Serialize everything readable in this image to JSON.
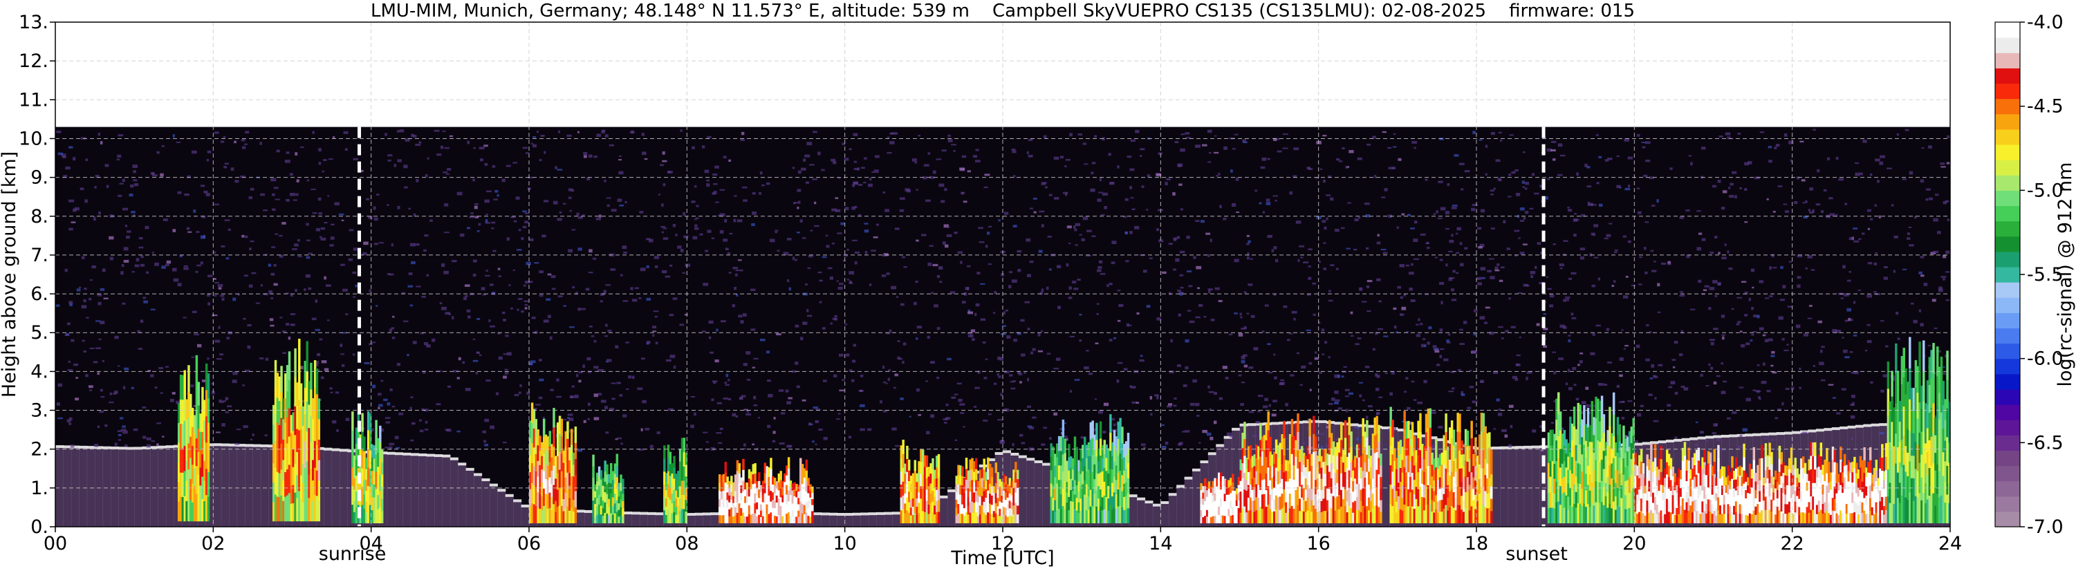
{
  "chart_data": {
    "type": "heatmap",
    "title": "LMU-MIM, Munich, Germany; 48.148° N 11.573° E, altitude: 539 m    Campbell SkyVUEPRO CS135 (CS135LMU): 02-08-2025    firmware: 015",
    "xlabel": "Time [UTC]",
    "ylabel": "Height above ground [km]",
    "xlim": [
      0,
      24
    ],
    "ylim": [
      0,
      13
    ],
    "x_ticks": [
      "00",
      "02",
      "04",
      "06",
      "08",
      "10",
      "12",
      "14",
      "16",
      "18",
      "20",
      "22",
      "24"
    ],
    "y_ticks": [
      "0.",
      "1.",
      "2.",
      "3.",
      "4.",
      "5.",
      "6.",
      "7.",
      "8.",
      "9.",
      "10.",
      "11.",
      "12.",
      "13."
    ],
    "grid": true,
    "data_top_km": 10.3,
    "colorbar": {
      "label": "log(rc-signal) @ 912 nm",
      "range": [
        -7.0,
        -4.0
      ],
      "ticks": [
        "-4.0",
        "-4.5",
        "-5.0",
        "-5.5",
        "-6.0",
        "-6.5",
        "-7.0"
      ],
      "colors": [
        "#a68ca6",
        "#9a7a9e",
        "#8d6796",
        "#80558d",
        "#744485",
        "#6a2d8f",
        "#5e1598",
        "#4f06a2",
        "#2a06b5",
        "#0818c9",
        "#1538dc",
        "#2d5ae6",
        "#4a7cf0",
        "#6b9cf5",
        "#8cb8f7",
        "#a8c8f5",
        "#35b8a0",
        "#1aa070",
        "#159030",
        "#2aaf3a",
        "#45cf58",
        "#70df7a",
        "#a8e86c",
        "#d8f046",
        "#f7f02a",
        "#f8d01c",
        "#f8a40f",
        "#f8700a",
        "#f82a0a",
        "#e01010",
        "#e8b8b8",
        "#ececec",
        "#ffffff"
      ]
    },
    "annotations": [
      {
        "text": "sunrise",
        "x": 3.85
      },
      {
        "text": "sunset",
        "x": 18.85
      }
    ],
    "boundary_layer_km": [
      [
        0,
        2.05
      ],
      [
        1,
        2.0
      ],
      [
        2,
        2.1
      ],
      [
        3,
        2.05
      ],
      [
        4,
        1.9
      ],
      [
        5,
        1.8
      ],
      [
        6,
        0.45
      ],
      [
        7,
        0.35
      ],
      [
        8,
        0.3
      ],
      [
        9,
        0.35
      ],
      [
        10,
        0.3
      ],
      [
        11,
        0.35
      ],
      [
        12,
        1.95
      ],
      [
        13,
        1.3
      ],
      [
        14,
        0.5
      ],
      [
        15,
        2.6
      ],
      [
        16,
        2.7
      ],
      [
        17,
        2.5
      ],
      [
        18,
        2.0
      ],
      [
        19,
        2.05
      ],
      [
        20,
        2.1
      ],
      [
        21,
        2.3
      ],
      [
        22,
        2.4
      ],
      [
        23,
        2.6
      ],
      [
        24,
        2.7
      ]
    ],
    "cloud_features": [
      {
        "t0": 1.55,
        "t1": 1.95,
        "h0": 0.15,
        "h1": 4.5,
        "level": 0.7
      },
      {
        "t0": 2.75,
        "t1": 3.35,
        "h0": 0.15,
        "h1": 5.0,
        "level": 0.72
      },
      {
        "t0": 3.75,
        "t1": 4.15,
        "h0": 0.1,
        "h1": 3.0,
        "level": 0.65
      },
      {
        "t0": 6.0,
        "t1": 6.6,
        "h0": 0.1,
        "h1": 3.2,
        "level": 0.78
      },
      {
        "t0": 6.8,
        "t1": 7.2,
        "h0": 0.1,
        "h1": 1.9,
        "level": 0.6
      },
      {
        "t0": 7.7,
        "t1": 8.0,
        "h0": 0.1,
        "h1": 2.4,
        "level": 0.62
      },
      {
        "t0": 8.4,
        "t1": 9.6,
        "h0": 0.1,
        "h1": 1.8,
        "level": 0.9
      },
      {
        "t0": 10.7,
        "t1": 11.2,
        "h0": 0.1,
        "h1": 2.3,
        "level": 0.8
      },
      {
        "t0": 11.4,
        "t1": 12.2,
        "h0": 0.1,
        "h1": 1.8,
        "level": 0.85
      },
      {
        "t0": 12.6,
        "t1": 13.6,
        "h0": 0.1,
        "h1": 2.9,
        "level": 0.6
      },
      {
        "t0": 14.5,
        "t1": 15.0,
        "h0": 0.1,
        "h1": 1.5,
        "level": 0.95
      },
      {
        "t0": 15.0,
        "t1": 16.8,
        "h0": 0.1,
        "h1": 3.0,
        "level": 0.85
      },
      {
        "t0": 16.9,
        "t1": 18.2,
        "h0": 0.1,
        "h1": 3.1,
        "level": 0.8
      },
      {
        "t0": 18.9,
        "t1": 20.0,
        "h0": 0.1,
        "h1": 3.5,
        "level": 0.62
      },
      {
        "t0": 20.0,
        "t1": 23.2,
        "h0": 0.1,
        "h1": 2.2,
        "level": 0.9
      },
      {
        "t0": 23.2,
        "t1": 24.0,
        "h0": 0.1,
        "h1": 4.9,
        "level": 0.6
      }
    ]
  }
}
